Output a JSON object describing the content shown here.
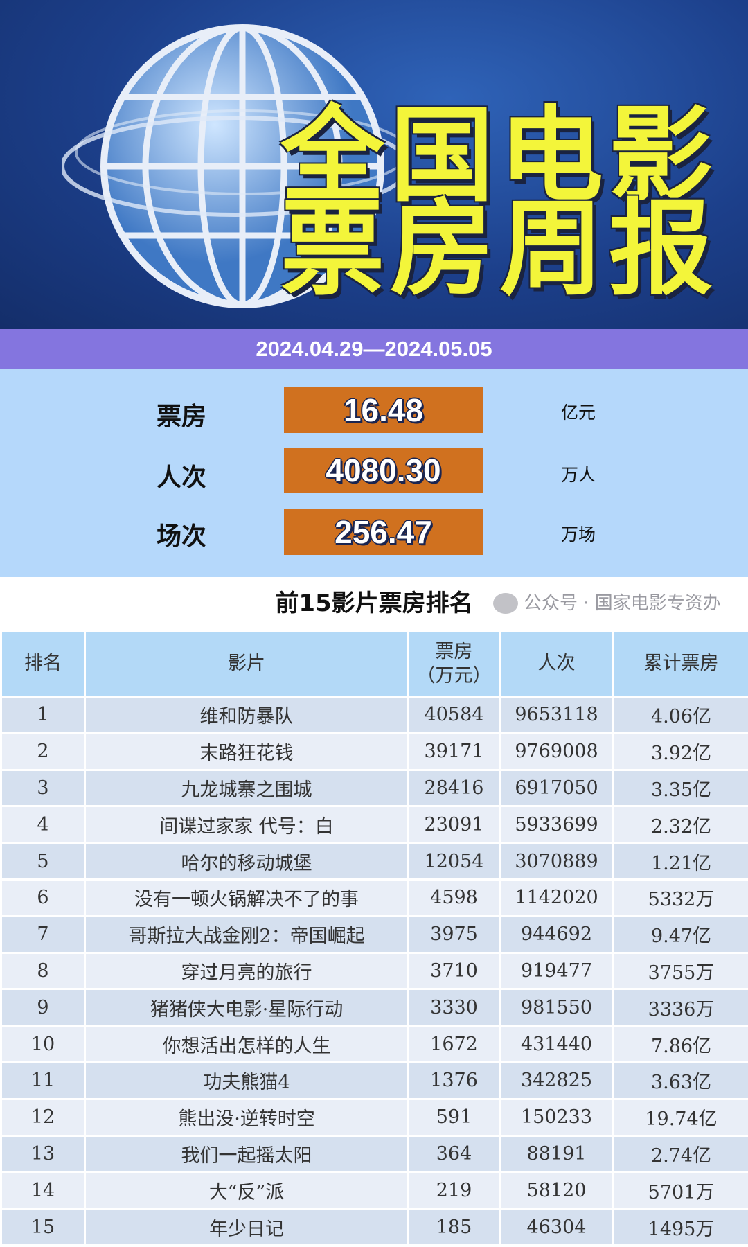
{
  "banner": {
    "title_line1": "全国电影",
    "title_line2": "票房周报",
    "colors": {
      "title": "#f3f53a",
      "background": "#1c3f8a"
    }
  },
  "date_range": "2024.04.29—2024.05.05",
  "stats": [
    {
      "label": "票房",
      "value": "16.48",
      "unit": "亿元"
    },
    {
      "label": "人次",
      "value": "4080.30",
      "unit": "万人"
    },
    {
      "label": "场次",
      "value": "256.47",
      "unit": "万场"
    }
  ],
  "ranking_title": "前15影片票房排名",
  "table": {
    "headers": [
      "排名",
      "影片",
      "票房\n（万元）",
      "人次",
      "累计票房"
    ],
    "rows": [
      [
        "1",
        "维和防暴队",
        "40584",
        "9653118",
        "4.06亿"
      ],
      [
        "2",
        "末路狂花钱",
        "39171",
        "9769008",
        "3.92亿"
      ],
      [
        "3",
        "九龙城寨之围城",
        "28416",
        "6917050",
        "3.35亿"
      ],
      [
        "4",
        "间谍过家家 代号：白",
        "23091",
        "5933699",
        "2.32亿"
      ],
      [
        "5",
        "哈尔的移动城堡",
        "12054",
        "3070889",
        "1.21亿"
      ],
      [
        "6",
        "没有一顿火锅解决不了的事",
        "4598",
        "1142020",
        "5332万"
      ],
      [
        "7",
        "哥斯拉大战金刚2：帝国崛起",
        "3975",
        "944692",
        "9.47亿"
      ],
      [
        "8",
        "穿过月亮的旅行",
        "3710",
        "919477",
        "3755万"
      ],
      [
        "9",
        "猪猪侠大电影·星际行动",
        "3330",
        "981550",
        "3336万"
      ],
      [
        "10",
        "你想活出怎样的人生",
        "1672",
        "431440",
        "7.86亿"
      ],
      [
        "11",
        "功夫熊猫4",
        "1376",
        "342825",
        "3.63亿"
      ],
      [
        "12",
        "熊出没·逆转时空",
        "591",
        "150233",
        "19.74亿"
      ],
      [
        "13",
        "我们一起摇太阳",
        "364",
        "88191",
        "2.74亿"
      ],
      [
        "14",
        "大“反”派",
        "219",
        "58120",
        "5701万"
      ],
      [
        "15",
        "年少日记",
        "185",
        "46304",
        "1495万"
      ]
    ]
  },
  "watermark": "公众号 · 国家电影专资办",
  "icons": {
    "watermark": "wechat-icon"
  }
}
